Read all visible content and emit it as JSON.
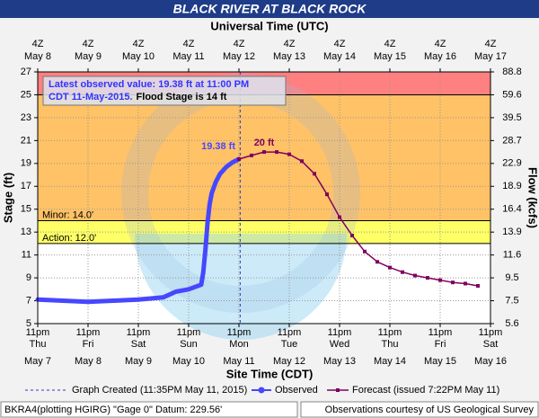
{
  "chart_data": {
    "type": "line",
    "title": "BLACK RIVER AT BLACK ROCK",
    "top_axis_label": "Universal Time (UTC)",
    "x_axis_label": "Site Time (CDT)",
    "y_axis_label": "Stage (ft)",
    "y2_axis_label": "Flow (kcfs)",
    "xlim": [
      "2015-05-07T23:00",
      "2015-05-16T23:00"
    ],
    "xticks": [
      {
        "value": "2015-05-07T23:00",
        "label": [
          "11pm",
          "Thu",
          "May 7"
        ]
      },
      {
        "value": "2015-05-08T23:00",
        "label": [
          "11pm",
          "Fri",
          "May 8"
        ]
      },
      {
        "value": "2015-05-09T23:00",
        "label": [
          "11pm",
          "Sat",
          "May 9"
        ]
      },
      {
        "value": "2015-05-10T23:00",
        "label": [
          "11pm",
          "Sun",
          "May 10"
        ]
      },
      {
        "value": "2015-05-11T23:00",
        "label": [
          "11pm",
          "Mon",
          "May 11"
        ]
      },
      {
        "value": "2015-05-12T23:00",
        "label": [
          "11pm",
          "Tue",
          "May 12"
        ]
      },
      {
        "value": "2015-05-13T23:00",
        "label": [
          "11pm",
          "Wed",
          "May 13"
        ]
      },
      {
        "value": "2015-05-14T23:00",
        "label": [
          "11pm",
          "Thu",
          "May 14"
        ]
      },
      {
        "value": "2015-05-15T23:00",
        "label": [
          "11pm",
          "Fri",
          "May 15"
        ]
      },
      {
        "value": "2015-05-16T23:00",
        "label": [
          "11pm",
          "Sat",
          "May 16"
        ]
      }
    ],
    "x2ticks": [
      {
        "value": "2015-05-07T23:00",
        "label": [
          "4Z",
          "May  8"
        ]
      },
      {
        "value": "2015-05-08T23:00",
        "label": [
          "4Z",
          "May  9"
        ]
      },
      {
        "value": "2015-05-09T23:00",
        "label": [
          "4Z",
          "May 10"
        ]
      },
      {
        "value": "2015-05-10T23:00",
        "label": [
          "4Z",
          "May 11"
        ]
      },
      {
        "value": "2015-05-11T23:00",
        "label": [
          "4Z",
          "May 12"
        ]
      },
      {
        "value": "2015-05-12T23:00",
        "label": [
          "4Z",
          "May 13"
        ]
      },
      {
        "value": "2015-05-13T23:00",
        "label": [
          "4Z",
          "May 14"
        ]
      },
      {
        "value": "2015-05-14T23:00",
        "label": [
          "4Z",
          "May 15"
        ]
      },
      {
        "value": "2015-05-15T23:00",
        "label": [
          "4Z",
          "May 16"
        ]
      },
      {
        "value": "2015-05-16T23:00",
        "label": [
          "4Z",
          "May 17"
        ]
      }
    ],
    "ylim": [
      5,
      27
    ],
    "yticks": [
      5,
      7,
      9,
      11,
      13,
      15,
      17,
      19,
      21,
      23,
      25,
      27
    ],
    "y2lim": [
      5.6,
      88.8
    ],
    "y2ticks": [
      5.6,
      7.5,
      9.5,
      11.6,
      13.9,
      16.4,
      18.9,
      22.9,
      28.7,
      39.5,
      59.6,
      88.8
    ],
    "grid": true,
    "thresholds": [
      {
        "label": "Action: 12.0'",
        "value": 12,
        "color": "#ffff66"
      },
      {
        "label": "Minor: 14.0'",
        "value": 14,
        "color": "#ffc266"
      },
      {
        "value": 25,
        "color": "#ff8080"
      }
    ],
    "created": "2015-05-11T23:35",
    "annotation": [
      "Latest observed value: 19.38 ft at 11:00 PM",
      "CDT 11-May-2015.",
      "Flood Stage is 14 ft"
    ],
    "series": [
      {
        "name": "Observed",
        "color": "#4747ff",
        "x": [
          "2015-05-07T23:00",
          "2015-05-08T11:00",
          "2015-05-08T23:00",
          "2015-05-09T11:00",
          "2015-05-09T23:00",
          "2015-05-10T11:00",
          "2015-05-10T17:00",
          "2015-05-10T23:00",
          "2015-05-11T05:00",
          "2015-05-11T06:00",
          "2015-05-11T07:00",
          "2015-05-11T08:00",
          "2015-05-11T09:00",
          "2015-05-11T10:00",
          "2015-05-11T12:00",
          "2015-05-11T14:00",
          "2015-05-11T17:00",
          "2015-05-11T20:00",
          "2015-05-11T23:00"
        ],
        "values": [
          7.1,
          7.0,
          6.9,
          7.0,
          7.1,
          7.3,
          7.8,
          8.0,
          8.4,
          9.5,
          11.5,
          13.8,
          15.4,
          16.4,
          17.4,
          18.1,
          18.7,
          19.1,
          19.38
        ],
        "value_labels": [
          null,
          null,
          null,
          null,
          null,
          null,
          null,
          null,
          null,
          null,
          null,
          null,
          null,
          null,
          null,
          null,
          null,
          null,
          "19.38 ft"
        ]
      },
      {
        "name": "Forecast (issued 7:22PM May 11)",
        "color": "#800060",
        "x": [
          "2015-05-11T23:00",
          "2015-05-12T05:00",
          "2015-05-12T11:00",
          "2015-05-12T17:00",
          "2015-05-12T23:00",
          "2015-05-13T05:00",
          "2015-05-13T11:00",
          "2015-05-13T17:00",
          "2015-05-13T23:00",
          "2015-05-14T05:00",
          "2015-05-14T11:00",
          "2015-05-14T17:00",
          "2015-05-14T23:00",
          "2015-05-15T05:00",
          "2015-05-15T11:00",
          "2015-05-15T17:00",
          "2015-05-15T23:00",
          "2015-05-16T05:00",
          "2015-05-16T11:00",
          "2015-05-16T17:00"
        ],
        "values": [
          19.38,
          19.7,
          20.0,
          20.0,
          19.8,
          19.2,
          18.1,
          16.3,
          14.3,
          12.7,
          11.3,
          10.4,
          9.9,
          9.5,
          9.2,
          9.0,
          8.8,
          8.6,
          8.5,
          8.3
        ],
        "value_labels": [
          null,
          null,
          "20 ft",
          null,
          null,
          null,
          null,
          null,
          null,
          null,
          null,
          null,
          null,
          null,
          null,
          null,
          null,
          null,
          null,
          null
        ]
      }
    ],
    "legend_created": "Graph Created (11:35PM May 11, 2015)",
    "footer_left": "BKRA4(plotting HGIRG) \"Gage 0\" Datum: 229.56'",
    "footer_right": "Observations courtesy of US Geological Survey"
  }
}
